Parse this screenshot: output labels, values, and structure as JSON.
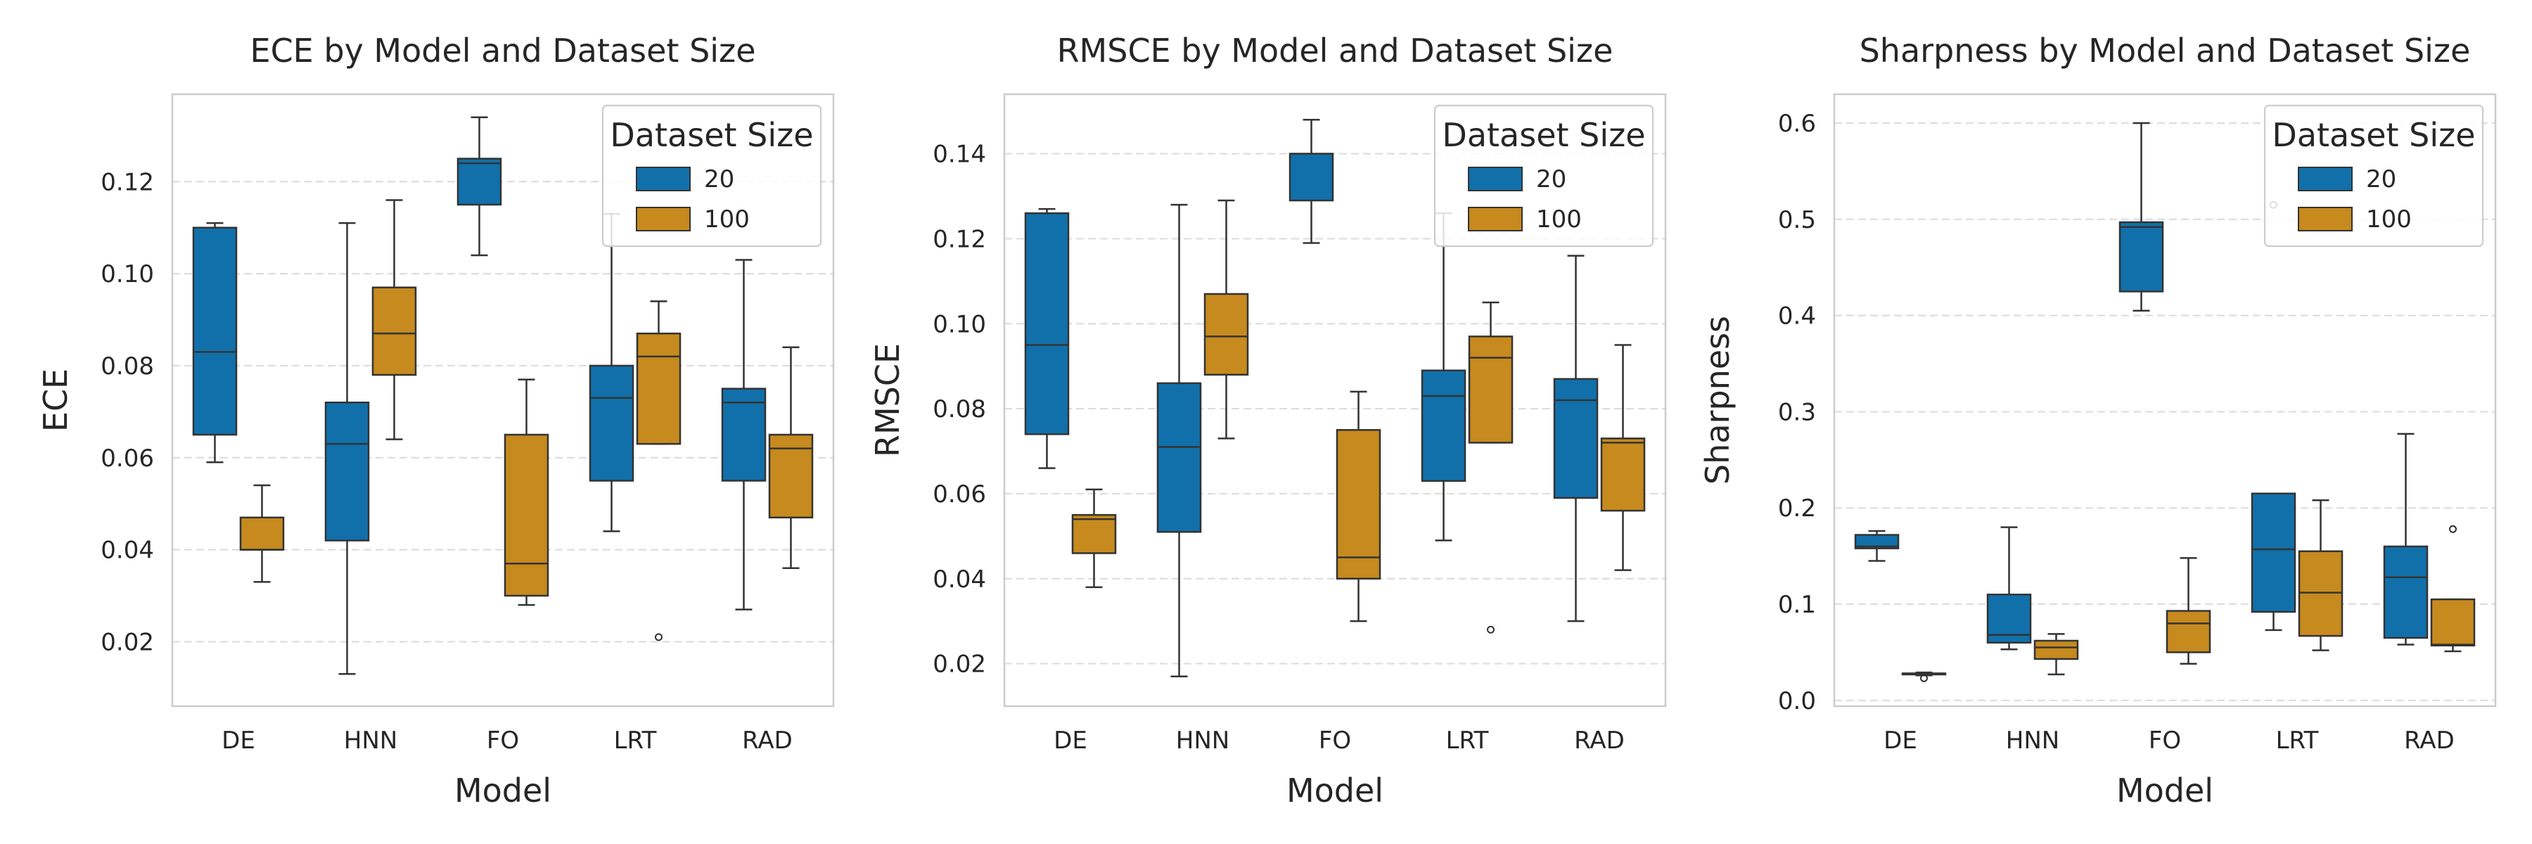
{
  "colors": {
    "size20": "#1170AA",
    "size100": "#C68A1E",
    "grid": "#DDDDDD",
    "frame": "#CCCCCC",
    "line": "#333333"
  },
  "chart_data": [
    {
      "type": "box",
      "title": "ECE by Model and Dataset Size",
      "xlabel": "Model",
      "ylabel": "ECE",
      "categories": [
        "DE",
        "HNN",
        "FO",
        "LRT",
        "RAD"
      ],
      "ylim": [
        0.006,
        0.139
      ],
      "yticks": [
        0.02,
        0.04,
        0.06,
        0.08,
        0.1,
        0.12
      ],
      "ytick_labels": [
        "0.02",
        "0.04",
        "0.06",
        "0.08",
        "0.10",
        "0.12"
      ],
      "grid": true,
      "legend": {
        "title": "Dataset Size",
        "placement": "upper-right",
        "entries": [
          "20",
          "100"
        ]
      },
      "series": [
        {
          "name": "20",
          "boxes": [
            {
              "whislo": 0.059,
              "q1": 0.065,
              "med": 0.083,
              "q3": 0.11,
              "whishi": 0.111,
              "fliers": []
            },
            {
              "whislo": 0.013,
              "q1": 0.042,
              "med": 0.063,
              "q3": 0.072,
              "whishi": 0.111,
              "fliers": []
            },
            {
              "whislo": 0.104,
              "q1": 0.115,
              "med": 0.124,
              "q3": 0.125,
              "whishi": 0.134,
              "fliers": []
            },
            {
              "whislo": 0.044,
              "q1": 0.055,
              "med": 0.073,
              "q3": 0.08,
              "whishi": 0.113,
              "fliers": []
            },
            {
              "whislo": 0.027,
              "q1": 0.055,
              "med": 0.072,
              "q3": 0.075,
              "whishi": 0.103,
              "fliers": []
            }
          ]
        },
        {
          "name": "100",
          "boxes": [
            {
              "whislo": 0.033,
              "q1": 0.04,
              "med": 0.04,
              "q3": 0.047,
              "whishi": 0.054,
              "fliers": []
            },
            {
              "whislo": 0.064,
              "q1": 0.078,
              "med": 0.087,
              "q3": 0.097,
              "whishi": 0.116,
              "fliers": []
            },
            {
              "whislo": 0.028,
              "q1": 0.03,
              "med": 0.037,
              "q3": 0.065,
              "whishi": 0.077,
              "fliers": []
            },
            {
              "whislo": 0.063,
              "q1": 0.063,
              "med": 0.082,
              "q3": 0.087,
              "whishi": 0.094,
              "fliers": [
                0.021
              ]
            },
            {
              "whislo": 0.036,
              "q1": 0.047,
              "med": 0.062,
              "q3": 0.065,
              "whishi": 0.084,
              "fliers": []
            }
          ]
        }
      ]
    },
    {
      "type": "box",
      "title": "RMSCE by Model and Dataset Size",
      "xlabel": "Model",
      "ylabel": "RMSCE",
      "categories": [
        "DE",
        "HNN",
        "FO",
        "LRT",
        "RAD"
      ],
      "ylim": [
        0.01,
        0.154
      ],
      "yticks": [
        0.02,
        0.04,
        0.06,
        0.08,
        0.1,
        0.12,
        0.14
      ],
      "ytick_labels": [
        "0.02",
        "0.04",
        "0.06",
        "0.08",
        "0.10",
        "0.12",
        "0.14"
      ],
      "grid": true,
      "legend": {
        "title": "Dataset Size",
        "placement": "upper-right",
        "entries": [
          "20",
          "100"
        ]
      },
      "series": [
        {
          "name": "20",
          "boxes": [
            {
              "whislo": 0.066,
              "q1": 0.074,
              "med": 0.095,
              "q3": 0.126,
              "whishi": 0.127,
              "fliers": []
            },
            {
              "whislo": 0.017,
              "q1": 0.051,
              "med": 0.071,
              "q3": 0.086,
              "whishi": 0.128,
              "fliers": []
            },
            {
              "whislo": 0.119,
              "q1": 0.129,
              "med": 0.14,
              "q3": 0.14,
              "whishi": 0.148,
              "fliers": []
            },
            {
              "whislo": 0.049,
              "q1": 0.063,
              "med": 0.083,
              "q3": 0.089,
              "whishi": 0.126,
              "fliers": []
            },
            {
              "whislo": 0.03,
              "q1": 0.059,
              "med": 0.082,
              "q3": 0.087,
              "whishi": 0.116,
              "fliers": []
            }
          ]
        },
        {
          "name": "100",
          "boxes": [
            {
              "whislo": 0.038,
              "q1": 0.046,
              "med": 0.054,
              "q3": 0.055,
              "whishi": 0.061,
              "fliers": []
            },
            {
              "whislo": 0.073,
              "q1": 0.088,
              "med": 0.097,
              "q3": 0.107,
              "whishi": 0.129,
              "fliers": []
            },
            {
              "whislo": 0.03,
              "q1": 0.04,
              "med": 0.045,
              "q3": 0.075,
              "whishi": 0.084,
              "fliers": []
            },
            {
              "whislo": 0.072,
              "q1": 0.072,
              "med": 0.092,
              "q3": 0.097,
              "whishi": 0.105,
              "fliers": [
                0.028
              ]
            },
            {
              "whislo": 0.042,
              "q1": 0.056,
              "med": 0.072,
              "q3": 0.073,
              "whishi": 0.095,
              "fliers": []
            }
          ]
        }
      ]
    },
    {
      "type": "box",
      "title": "Sharpness by Model and Dataset Size",
      "xlabel": "Model",
      "ylabel": "Sharpness",
      "categories": [
        "DE",
        "HNN",
        "FO",
        "LRT",
        "RAD"
      ],
      "ylim": [
        -0.006,
        0.63
      ],
      "yticks": [
        0.0,
        0.1,
        0.2,
        0.3,
        0.4,
        0.5,
        0.6
      ],
      "ytick_labels": [
        "0.0",
        "0.1",
        "0.2",
        "0.3",
        "0.4",
        "0.5",
        "0.6"
      ],
      "grid": true,
      "legend": {
        "title": "Dataset Size",
        "placement": "upper-right",
        "entries": [
          "20",
          "100"
        ]
      },
      "series": [
        {
          "name": "20",
          "boxes": [
            {
              "whislo": 0.145,
              "q1": 0.158,
              "med": 0.16,
              "q3": 0.172,
              "whishi": 0.176,
              "fliers": []
            },
            {
              "whislo": 0.053,
              "q1": 0.06,
              "med": 0.068,
              "q3": 0.11,
              "whishi": 0.18,
              "fliers": []
            },
            {
              "whislo": 0.405,
              "q1": 0.425,
              "med": 0.492,
              "q3": 0.497,
              "whishi": 0.6,
              "fliers": []
            },
            {
              "whislo": 0.073,
              "q1": 0.092,
              "med": 0.157,
              "q3": 0.215,
              "whishi": 0.215,
              "fliers": [
                0.515
              ]
            },
            {
              "whislo": 0.058,
              "q1": 0.065,
              "med": 0.128,
              "q3": 0.16,
              "whishi": 0.277,
              "fliers": []
            }
          ]
        },
        {
          "name": "100",
          "boxes": [
            {
              "whislo": 0.026,
              "q1": 0.027,
              "med": 0.028,
              "q3": 0.028,
              "whishi": 0.029,
              "fliers": [
                0.023
              ]
            },
            {
              "whislo": 0.027,
              "q1": 0.043,
              "med": 0.055,
              "q3": 0.062,
              "whishi": 0.069,
              "fliers": []
            },
            {
              "whislo": 0.038,
              "q1": 0.05,
              "med": 0.08,
              "q3": 0.093,
              "whishi": 0.148,
              "fliers": []
            },
            {
              "whislo": 0.052,
              "q1": 0.067,
              "med": 0.112,
              "q3": 0.155,
              "whishi": 0.208,
              "fliers": []
            },
            {
              "whislo": 0.051,
              "q1": 0.057,
              "med": 0.058,
              "q3": 0.105,
              "whishi": 0.105,
              "fliers": [
                0.178
              ]
            }
          ]
        }
      ]
    }
  ]
}
